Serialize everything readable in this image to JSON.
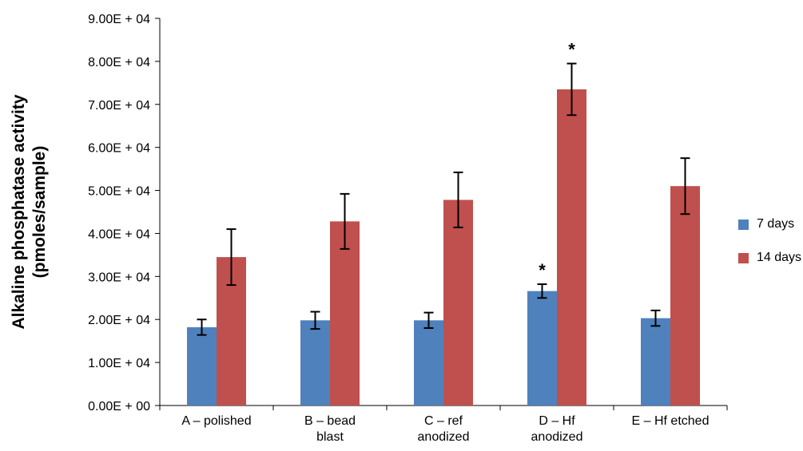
{
  "chart_data": {
    "type": "bar",
    "ylabel": [
      "Alkaline phosphatase activity",
      "(pmoles/sample)"
    ],
    "ylim": [
      0,
      90000
    ],
    "yticks": [
      0,
      10000,
      20000,
      30000,
      40000,
      50000,
      60000,
      70000,
      80000,
      90000
    ],
    "ytick_labels": [
      "0.00E + 00",
      "1.00E + 04",
      "2.00E + 04",
      "3.00E + 04",
      "4.00E + 04",
      "5.00E + 04",
      "6.00E + 04",
      "7.00E + 04",
      "8.00E + 04",
      "9.00E + 04"
    ],
    "categories": [
      [
        "A – polished"
      ],
      [
        "B – bead",
        "blast"
      ],
      [
        "C – ref",
        "anodized"
      ],
      [
        "D – Hf",
        "anodized"
      ],
      [
        "E – Hf etched"
      ]
    ],
    "series": [
      {
        "name": "7 days",
        "color": "#4f81bd",
        "values": [
          18200,
          19800,
          19800,
          26600,
          20300
        ],
        "errors": [
          1800,
          2000,
          1800,
          1600,
          1800
        ],
        "annotations": [
          "",
          "",
          "",
          "*",
          ""
        ]
      },
      {
        "name": "14 days",
        "color": "#c0504d",
        "values": [
          34500,
          42800,
          47800,
          73500,
          51000
        ],
        "errors": [
          6500,
          6400,
          6400,
          6000,
          6500
        ],
        "annotations": [
          "",
          "",
          "",
          "*",
          ""
        ]
      }
    ],
    "legend_position": "right",
    "grid": false
  }
}
